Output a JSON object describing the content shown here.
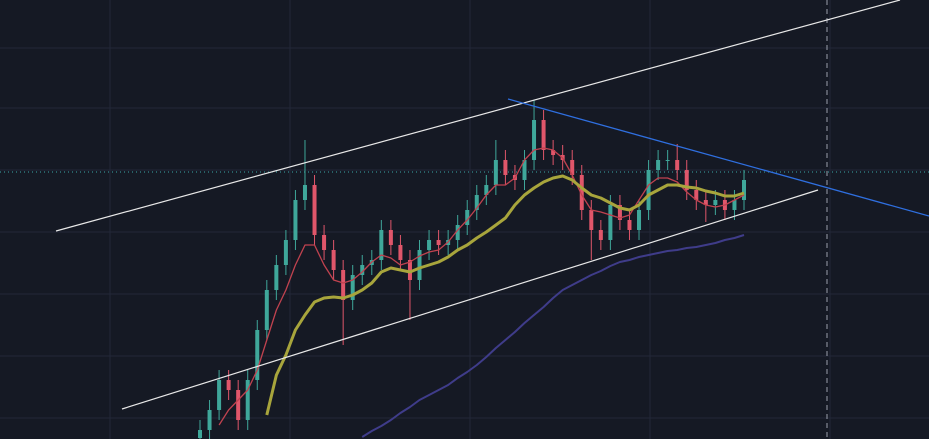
{
  "chart_data": {
    "type": "candlestick",
    "ylim": [
      0,
      439
    ],
    "up_color": "#3fa79a",
    "down_color": "#e0566a",
    "open": [
      1,
      9,
      29,
      59,
      49,
      19,
      59,
      109,
      149,
      174,
      199,
      239,
      254,
      204,
      189,
      169,
      139,
      164,
      174,
      179,
      209,
      194,
      179,
      159,
      189,
      199,
      194,
      199,
      214,
      229,
      244,
      254,
      279,
      264,
      259,
      279,
      319,
      289,
      284,
      279,
      264,
      229,
      209,
      199,
      234,
      219,
      209,
      229,
      269,
      279,
      279,
      269,
      249,
      239,
      234,
      239,
      229,
      239
    ],
    "high": [
      19,
      39,
      69,
      69,
      59,
      69,
      119,
      159,
      184,
      209,
      249,
      299,
      264,
      214,
      199,
      179,
      174,
      184,
      189,
      219,
      219,
      204,
      189,
      199,
      209,
      209,
      209,
      224,
      239,
      254,
      264,
      299,
      289,
      274,
      289,
      339,
      329,
      299,
      294,
      289,
      274,
      239,
      219,
      244,
      244,
      229,
      239,
      279,
      289,
      289,
      295,
      279,
      259,
      249,
      249,
      249,
      249,
      269
    ],
    "low": [
      0,
      0,
      19,
      39,
      9,
      9,
      49,
      99,
      139,
      164,
      189,
      229,
      194,
      179,
      159,
      94,
      129,
      154,
      164,
      169,
      184,
      169,
      119,
      149,
      179,
      184,
      184,
      189,
      204,
      219,
      234,
      244,
      254,
      249,
      249,
      269,
      279,
      274,
      269,
      254,
      219,
      179,
      189,
      189,
      209,
      199,
      199,
      219,
      259,
      269,
      259,
      239,
      229,
      217,
      224,
      219,
      219,
      229
    ],
    "close": [
      9,
      29,
      59,
      49,
      19,
      59,
      109,
      149,
      174,
      199,
      239,
      254,
      204,
      189,
      169,
      139,
      164,
      174,
      179,
      209,
      194,
      179,
      159,
      189,
      199,
      194,
      199,
      214,
      229,
      244,
      254,
      279,
      264,
      259,
      279,
      319,
      289,
      284,
      279,
      264,
      229,
      209,
      199,
      234,
      219,
      209,
      229,
      269,
      279,
      279,
      269,
      249,
      239,
      234,
      239,
      229,
      239,
      259
    ],
    "series": [
      {
        "color": "#c0424f",
        "width": 1.3,
        "values": [
          null,
          null,
          14,
          29,
          39,
          49,
          69,
          99,
          129,
          149,
          174,
          194,
          194,
          174,
          159,
          156,
          159,
          167,
          177,
          184,
          181,
          174,
          177,
          183,
          187,
          189,
          197,
          209,
          219,
          231,
          244,
          254,
          254,
          261,
          279,
          289,
          291,
          289,
          281,
          264,
          244,
          229,
          227,
          224,
          221,
          224,
          239,
          254,
          261,
          261,
          257,
          247,
          239,
          234,
          232,
          234,
          239,
          244
        ]
      },
      {
        "color": "#a8a53c",
        "width": 3,
        "values": [
          null,
          null,
          null,
          null,
          null,
          null,
          null,
          24,
          64,
          84,
          109,
          124,
          137,
          141,
          142,
          141,
          144,
          149,
          156,
          167,
          171,
          169,
          167,
          171,
          174,
          177,
          182,
          189,
          194,
          201,
          207,
          214,
          221,
          234,
          244,
          251,
          257,
          261,
          263,
          259,
          251,
          244,
          241,
          236,
          231,
          229,
          234,
          244,
          249,
          254,
          254,
          252,
          251,
          248,
          246,
          243,
          243,
          246
        ]
      },
      {
        "color": "#3f3c8a",
        "width": 2,
        "values": [
          null,
          null,
          null,
          null,
          null,
          null,
          null,
          null,
          null,
          null,
          null,
          null,
          null,
          null,
          null,
          null,
          null,
          2,
          8,
          13,
          19,
          26,
          32,
          39,
          44,
          49,
          54,
          61,
          67,
          74,
          82,
          91,
          99,
          107,
          116,
          124,
          132,
          141,
          149,
          154,
          159,
          164,
          168,
          173,
          177,
          179,
          182,
          184,
          186,
          188,
          189,
          191,
          192,
          194,
          196,
          199,
          201,
          204
        ]
      }
    ]
  }
}
